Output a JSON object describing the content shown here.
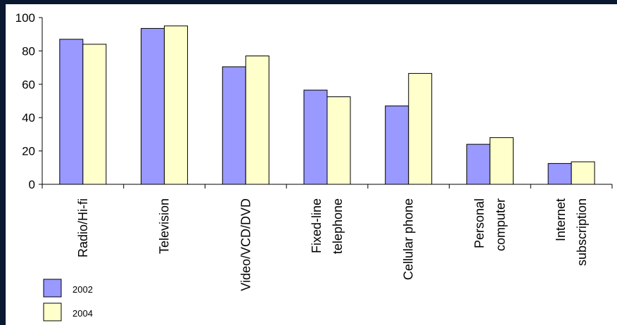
{
  "chart_data": {
    "type": "bar",
    "title": "",
    "xlabel": "",
    "ylabel": "",
    "ylim": [
      0,
      100
    ],
    "yticks": [
      0,
      20,
      40,
      60,
      80,
      100
    ],
    "categories": [
      [
        "Radio/Hi-fi"
      ],
      [
        "Television"
      ],
      [
        "Video/VCD/DVD"
      ],
      [
        "Fixed-line",
        "telephone"
      ],
      [
        "Cellular phone"
      ],
      [
        "Personal",
        "computer"
      ],
      [
        "Internet",
        "subscription"
      ]
    ],
    "series": [
      {
        "name": "2002",
        "color": "#9999ff",
        "values": [
          87,
          93.5,
          70.5,
          56.5,
          47,
          24,
          12.5
        ]
      },
      {
        "name": "2004",
        "color": "#ffffcc",
        "values": [
          84,
          95,
          77,
          52.5,
          66.5,
          28,
          13.5
        ]
      }
    ],
    "grid": false,
    "legend_position": "bottom-left"
  }
}
